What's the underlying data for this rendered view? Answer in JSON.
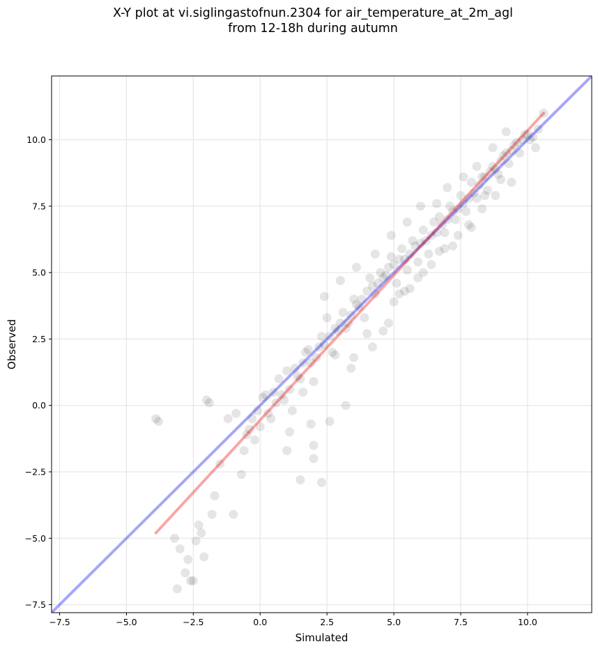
{
  "title_line1": "X-Y plot at vi.siglingastofnun.2304 for air_temperature_at_2m_agl",
  "title_line2": "from 12-18h during autumn",
  "chart_data": {
    "type": "scatter",
    "xlabel": "Simulated",
    "ylabel": "Observed",
    "xlim": [
      -7.8,
      12.4
    ],
    "ylim": [
      -7.8,
      12.4
    ],
    "xticks": [
      -7.5,
      -5.0,
      -2.5,
      0.0,
      2.5,
      5.0,
      7.5,
      10.0
    ],
    "yticks": [
      -7.5,
      -5.0,
      -2.5,
      0.0,
      2.5,
      5.0,
      7.5,
      10.0
    ],
    "xtick_labels": [
      "−7.5",
      "−5.0",
      "−2.5",
      "0.0",
      "2.5",
      "5.0",
      "7.5",
      "10.0"
    ],
    "ytick_labels": [
      "−7.5",
      "−5.0",
      "−2.5",
      "0.0",
      "2.5",
      "5.0",
      "7.5",
      "10.0"
    ],
    "grid": true,
    "point_color": "#000000",
    "point_alpha": 0.1,
    "series": [
      {
        "type": "scatter",
        "values_x": [
          -3.9,
          -3.8,
          -3.2,
          -3.1,
          -2.6,
          -2.7,
          -2.3,
          -1.8,
          -1.7,
          -1.5,
          -1.9,
          -2.0,
          -1.2,
          -0.9,
          -0.7,
          -0.5,
          -0.3,
          -0.1,
          0.1,
          0.3,
          0.5,
          0.7,
          0.9,
          1.1,
          1.3,
          1.5,
          1.7,
          1.9,
          2.2,
          2.4,
          2.6,
          2.8,
          3.0,
          3.2,
          3.4,
          3.6,
          3.8,
          4.0,
          4.2,
          4.4,
          4.6,
          4.8,
          5.0,
          5.2,
          5.4,
          5.6,
          5.8,
          6.0,
          6.2,
          6.4,
          6.6,
          6.8,
          7.0,
          7.2,
          7.4,
          7.6,
          7.8,
          8.0,
          8.2,
          8.4,
          8.6,
          8.8,
          9.0,
          9.2,
          9.4,
          9.6,
          9.8,
          10.0,
          10.2,
          10.4,
          10.6,
          -3.0,
          -2.8,
          -2.5,
          -2.4,
          -2.2,
          -2.1,
          -1.0,
          -0.6,
          -0.4,
          -0.2,
          0.0,
          0.2,
          0.4,
          0.8,
          1.0,
          1.2,
          1.4,
          1.6,
          1.8,
          2.0,
          2.1,
          2.3,
          2.5,
          2.7,
          2.9,
          3.1,
          3.3,
          3.5,
          3.7,
          3.9,
          4.1,
          4.3,
          4.5,
          4.7,
          4.9,
          5.1,
          5.3,
          5.5,
          5.7,
          5.9,
          6.1,
          6.3,
          6.5,
          6.7,
          6.9,
          7.1,
          7.3,
          7.5,
          7.7,
          7.9,
          8.1,
          8.3,
          8.5,
          8.7,
          8.9,
          9.1,
          9.3,
          9.5,
          9.7,
          9.9,
          10.1,
          1.0,
          1.5,
          2.0,
          2.0,
          2.3,
          2.6,
          3.2,
          3.5,
          4.0,
          4.8,
          5.2,
          5.6,
          6.1,
          6.7,
          7.2,
          7.9,
          8.4,
          9.0,
          2.4,
          3.0,
          3.6,
          4.3,
          4.9,
          5.5,
          6.0,
          6.6,
          7.0,
          7.6,
          8.1,
          8.7,
          9.2,
          0.6,
          1.1,
          1.6,
          1.9,
          2.8,
          3.4,
          4.2,
          4.6,
          5.0,
          5.4,
          5.9,
          6.4,
          6.9,
          7.4,
          7.8,
          8.3,
          8.8,
          9.4,
          10.3
        ],
        "values_y": [
          -0.5,
          -0.6,
          -5.0,
          -6.9,
          -6.6,
          -5.8,
          -4.5,
          -4.1,
          -3.4,
          -2.2,
          0.1,
          0.2,
          -0.5,
          -0.3,
          -2.6,
          -1.1,
          -0.5,
          -0.2,
          0.3,
          -0.3,
          0.5,
          1.0,
          0.2,
          0.6,
          1.4,
          1.0,
          2.0,
          1.6,
          2.2,
          2.3,
          2.6,
          2.9,
          3.1,
          2.9,
          3.4,
          3.8,
          4.0,
          4.3,
          4.5,
          4.6,
          4.8,
          5.2,
          5.3,
          5.5,
          5.5,
          5.7,
          6.0,
          6.1,
          6.2,
          6.4,
          6.5,
          6.8,
          7.0,
          7.3,
          7.4,
          7.6,
          7.8,
          8.0,
          8.3,
          8.6,
          8.8,
          8.9,
          9.2,
          9.5,
          9.6,
          9.9,
          10.0,
          10.2,
          10.1,
          10.4,
          11.0,
          -5.4,
          -6.3,
          -6.6,
          -5.1,
          -4.8,
          -5.7,
          -4.1,
          -1.7,
          -0.9,
          -1.3,
          -0.8,
          0.4,
          -0.5,
          0.4,
          1.3,
          -0.2,
          1.1,
          1.6,
          2.1,
          0.9,
          1.8,
          2.6,
          3.3,
          2.0,
          2.8,
          3.5,
          3.1,
          4.0,
          3.7,
          3.3,
          4.8,
          4.2,
          5.0,
          4.9,
          5.6,
          4.6,
          5.9,
          5.1,
          6.2,
          5.4,
          6.6,
          5.7,
          6.9,
          7.1,
          6.5,
          7.5,
          7.0,
          7.9,
          7.3,
          8.4,
          7.8,
          8.6,
          8.1,
          9.0,
          8.7,
          9.4,
          9.1,
          9.8,
          9.5,
          10.2,
          10.0,
          -1.7,
          -2.8,
          -2.0,
          -1.5,
          -2.9,
          -0.6,
          0.0,
          1.8,
          2.7,
          3.1,
          4.2,
          4.4,
          5.0,
          5.8,
          6.0,
          6.7,
          7.9,
          8.5,
          4.1,
          4.7,
          5.2,
          5.7,
          6.4,
          6.9,
          7.5,
          7.6,
          8.2,
          8.6,
          9.0,
          9.7,
          10.3,
          0.1,
          -1.0,
          0.5,
          -0.7,
          1.9,
          1.4,
          2.2,
          2.8,
          3.9,
          4.3,
          4.8,
          5.3,
          5.9,
          6.4,
          6.8,
          7.4,
          7.9,
          8.4,
          9.7
        ]
      }
    ],
    "lines": [
      {
        "name": "",
        "color": "#0000ee",
        "alpha": 0.35,
        "x": [
          -7.8,
          12.4
        ],
        "y": [
          -7.8,
          12.4
        ]
      },
      {
        "name": "",
        "color": "#ee0000",
        "alpha": 0.35,
        "x": [
          -3.9,
          10.6
        ],
        "y": [
          -4.8,
          11.0
        ]
      }
    ]
  }
}
